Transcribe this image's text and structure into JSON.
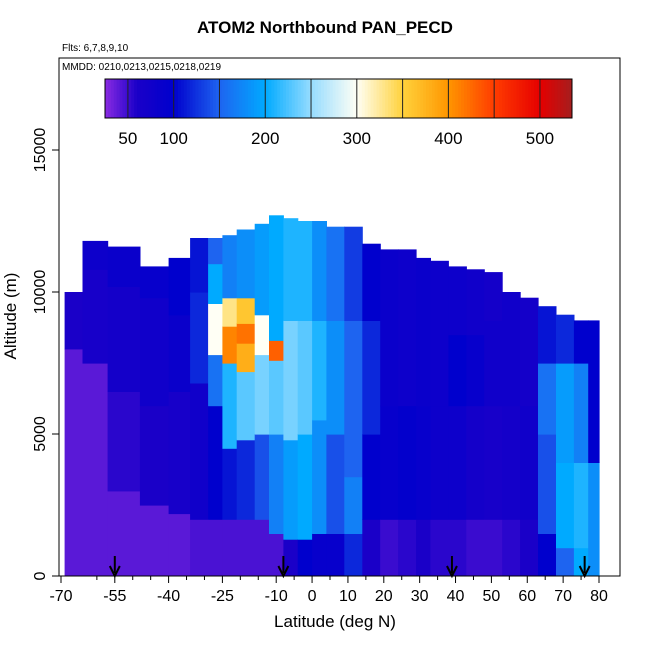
{
  "chart_data": {
    "type": "heatmap",
    "title": "ATOM2 Northbound PAN_PECD",
    "notes": [
      "Flts: 6,7,8,9,10",
      "MMDD: 0210,0213,0215,0218,0219"
    ],
    "xlabel": "Latitude (deg N)",
    "ylabel": "Altitude (m)",
    "xlim": [
      -70,
      85
    ],
    "ylim": [
      0,
      17500
    ],
    "x_ticks": [
      "-70",
      "-55",
      "-40",
      "-25",
      "-10",
      "0",
      "10",
      "20",
      "30",
      "40",
      "50",
      "60",
      "70",
      "80"
    ],
    "x_tick_values": [
      -70,
      -55,
      -40,
      -25,
      -10,
      0,
      10,
      20,
      30,
      40,
      50,
      60,
      70,
      80
    ],
    "x_minor_ticks": [
      -60,
      -50,
      -45,
      -35,
      -30,
      -20,
      -15,
      -5,
      5,
      15,
      25,
      35,
      45,
      55,
      65,
      75
    ],
    "y_ticks": [
      "0",
      "5000",
      "10000",
      "15000"
    ],
    "y_tick_values": [
      0,
      5000,
      10000,
      15000
    ],
    "colorbar": {
      "range": [
        25,
        535
      ],
      "tick_labels": [
        "50",
        "100",
        "200",
        "300",
        "400",
        "500"
      ],
      "tick_values": [
        50,
        100,
        200,
        300,
        400,
        500
      ],
      "boundaries": [
        50,
        100,
        150,
        200,
        250,
        300,
        350,
        400,
        450,
        500
      ],
      "colors": [
        "#8a2be2",
        "#1a00cc",
        "#1e90ff",
        "#00bfff",
        "#ffffff",
        "#ffd700",
        "#ff8c00",
        "#ff0000",
        "#a52a2a"
      ]
    },
    "arrows_latitude": [
      -55,
      -8,
      39,
      76
    ],
    "columns": [
      {
        "lat": [
          -69,
          -64
        ],
        "top": 10000,
        "bands": [
          [
            0,
            8000,
            40
          ],
          [
            8000,
            10000,
            60
          ]
        ]
      },
      {
        "lat": [
          -64,
          -57
        ],
        "top": 11800,
        "bands": [
          [
            0,
            7500,
            40
          ],
          [
            7500,
            10800,
            65
          ],
          [
            10800,
            11800,
            80
          ]
        ]
      },
      {
        "lat": [
          -57,
          -48
        ],
        "top": 11600,
        "bands": [
          [
            0,
            3000,
            40
          ],
          [
            3000,
            6500,
            55
          ],
          [
            6500,
            10200,
            70
          ],
          [
            10200,
            11600,
            85
          ]
        ]
      },
      {
        "lat": [
          -48,
          -40
        ],
        "top": 10900,
        "bands": [
          [
            0,
            2500,
            40
          ],
          [
            2500,
            6000,
            60
          ],
          [
            6000,
            9800,
            75
          ],
          [
            9800,
            10900,
            90
          ]
        ]
      },
      {
        "lat": [
          -40,
          -34
        ],
        "top": 11200,
        "bands": [
          [
            0,
            2200,
            40
          ],
          [
            2200,
            6500,
            65
          ],
          [
            6500,
            9200,
            85
          ],
          [
            9200,
            11200,
            100
          ]
        ]
      },
      {
        "lat": [
          -34,
          -29
        ],
        "top": 11900,
        "bands": [
          [
            0,
            2000,
            45
          ],
          [
            2000,
            6800,
            75
          ],
          [
            6800,
            10000,
            120
          ],
          [
            10000,
            11900,
            110
          ]
        ]
      },
      {
        "lat": [
          -29,
          -25
        ],
        "top": 11900,
        "bands": [
          [
            0,
            2000,
            45
          ],
          [
            2000,
            6000,
            100
          ],
          [
            6000,
            7800,
            160
          ],
          [
            7800,
            9600,
            300
          ],
          [
            9600,
            11000,
            200
          ],
          [
            11000,
            11900,
            150
          ]
        ]
      },
      {
        "lat": [
          -25,
          -21
        ],
        "top": 12000,
        "bands": [
          [
            0,
            2000,
            45
          ],
          [
            2000,
            4500,
            110
          ],
          [
            4500,
            7500,
            210
          ],
          [
            7500,
            8800,
            410
          ],
          [
            8800,
            9800,
            330
          ],
          [
            9800,
            12000,
            170
          ]
        ]
      },
      {
        "lat": [
          -21,
          -16
        ],
        "top": 12200,
        "bands": [
          [
            0,
            2000,
            45
          ],
          [
            2000,
            4800,
            120
          ],
          [
            4800,
            7200,
            230
          ],
          [
            7200,
            8200,
            380
          ],
          [
            8200,
            8900,
            420
          ],
          [
            8900,
            9800,
            360
          ],
          [
            9800,
            12200,
            180
          ]
        ]
      },
      {
        "lat": [
          -16,
          -12
        ],
        "top": 12400,
        "bands": [
          [
            0,
            2000,
            45
          ],
          [
            2000,
            5000,
            140
          ],
          [
            5000,
            7800,
            240
          ],
          [
            7800,
            9200,
            300
          ],
          [
            9200,
            12400,
            190
          ]
        ]
      },
      {
        "lat": [
          -12,
          -8
        ],
        "top": 12700,
        "bands": [
          [
            0,
            1500,
            45
          ],
          [
            1500,
            5000,
            170
          ],
          [
            5000,
            7600,
            230
          ],
          [
            7600,
            8300,
            430
          ],
          [
            8300,
            12700,
            200
          ]
        ]
      },
      {
        "lat": [
          -8,
          -4
        ],
        "top": 12600,
        "bands": [
          [
            0,
            1300,
            60
          ],
          [
            1300,
            4800,
            190
          ],
          [
            4800,
            9000,
            240
          ],
          [
            9000,
            12600,
            210
          ]
        ]
      },
      {
        "lat": [
          -4,
          0
        ],
        "top": 12500,
        "bands": [
          [
            0,
            1300,
            100
          ],
          [
            1300,
            5000,
            200
          ],
          [
            5000,
            9000,
            230
          ],
          [
            9000,
            12500,
            210
          ]
        ]
      },
      {
        "lat": [
          0,
          4
        ],
        "top": 12500,
        "bands": [
          [
            0,
            1500,
            90
          ],
          [
            1500,
            5500,
            180
          ],
          [
            5500,
            9000,
            210
          ],
          [
            9000,
            12500,
            180
          ]
        ]
      },
      {
        "lat": [
          4,
          9
        ],
        "top": 12300,
        "bands": [
          [
            0,
            1500,
            90
          ],
          [
            1500,
            5000,
            140
          ],
          [
            5000,
            9000,
            180
          ],
          [
            9000,
            12300,
            160
          ]
        ]
      },
      {
        "lat": [
          9,
          14
        ],
        "top": 12300,
        "bands": [
          [
            0,
            1500,
            120
          ],
          [
            1500,
            3500,
            170
          ],
          [
            3500,
            9000,
            150
          ],
          [
            9000,
            12300,
            130
          ]
        ]
      },
      {
        "lat": [
          14,
          19
        ],
        "top": 11700,
        "bands": [
          [
            0,
            2000,
            60
          ],
          [
            2000,
            5000,
            100
          ],
          [
            5000,
            9000,
            120
          ],
          [
            9000,
            11700,
            100
          ]
        ]
      },
      {
        "lat": [
          19,
          24
        ],
        "top": 11500,
        "bands": [
          [
            0,
            2000,
            50
          ],
          [
            2000,
            6000,
            90
          ],
          [
            6000,
            11500,
            85
          ]
        ]
      },
      {
        "lat": [
          24,
          29
        ],
        "top": 11500,
        "bands": [
          [
            0,
            2000,
            55
          ],
          [
            2000,
            6000,
            95
          ],
          [
            6000,
            11500,
            80
          ]
        ]
      },
      {
        "lat": [
          29,
          33
        ],
        "top": 11200,
        "bands": [
          [
            0,
            2000,
            60
          ],
          [
            2000,
            6000,
            90
          ],
          [
            6000,
            11200,
            85
          ]
        ]
      },
      {
        "lat": [
          33,
          38
        ],
        "top": 11100,
        "bands": [
          [
            0,
            2000,
            55
          ],
          [
            2000,
            6000,
            80
          ],
          [
            6000,
            11100,
            80
          ]
        ]
      },
      {
        "lat": [
          38,
          43
        ],
        "top": 10900,
        "bands": [
          [
            0,
            2000,
            55
          ],
          [
            2000,
            6000,
            80
          ],
          [
            6000,
            8500,
            100
          ],
          [
            8500,
            10900,
            80
          ]
        ]
      },
      {
        "lat": [
          43,
          48
        ],
        "top": 10800,
        "bands": [
          [
            0,
            2000,
            50
          ],
          [
            2000,
            6000,
            70
          ],
          [
            6000,
            8500,
            90
          ],
          [
            8500,
            10800,
            75
          ]
        ]
      },
      {
        "lat": [
          48,
          53
        ],
        "top": 10700,
        "bands": [
          [
            0,
            2000,
            50
          ],
          [
            2000,
            6000,
            65
          ],
          [
            6000,
            9000,
            75
          ],
          [
            9000,
            10700,
            70
          ]
        ]
      },
      {
        "lat": [
          53,
          58
        ],
        "top": 10000,
        "bands": [
          [
            0,
            2000,
            55
          ],
          [
            2000,
            6000,
            70
          ],
          [
            6000,
            10000,
            75
          ]
        ]
      },
      {
        "lat": [
          58,
          63
        ],
        "top": 9800,
        "bands": [
          [
            0,
            2000,
            60
          ],
          [
            2000,
            6000,
            75
          ],
          [
            6000,
            9800,
            70
          ]
        ]
      },
      {
        "lat": [
          63,
          68
        ],
        "top": 9500,
        "bands": [
          [
            0,
            1500,
            100
          ],
          [
            1500,
            5000,
            140
          ],
          [
            5000,
            7500,
            160
          ],
          [
            7500,
            9500,
            110
          ]
        ]
      },
      {
        "lat": [
          68,
          73
        ],
        "top": 9200,
        "bands": [
          [
            0,
            1000,
            150
          ],
          [
            1000,
            4000,
            200
          ],
          [
            4000,
            7500,
            190
          ],
          [
            7500,
            9200,
            120
          ]
        ]
      },
      {
        "lat": [
          73,
          77
        ],
        "top": 9000,
        "bands": [
          [
            0,
            1000,
            200
          ],
          [
            1000,
            4000,
            210
          ],
          [
            4000,
            7500,
            170
          ],
          [
            7500,
            9000,
            100
          ]
        ]
      },
      {
        "lat": [
          77,
          80
        ],
        "top": 9000,
        "bands": [
          [
            0,
            4000,
            180
          ],
          [
            4000,
            9000,
            100
          ]
        ]
      }
    ]
  }
}
